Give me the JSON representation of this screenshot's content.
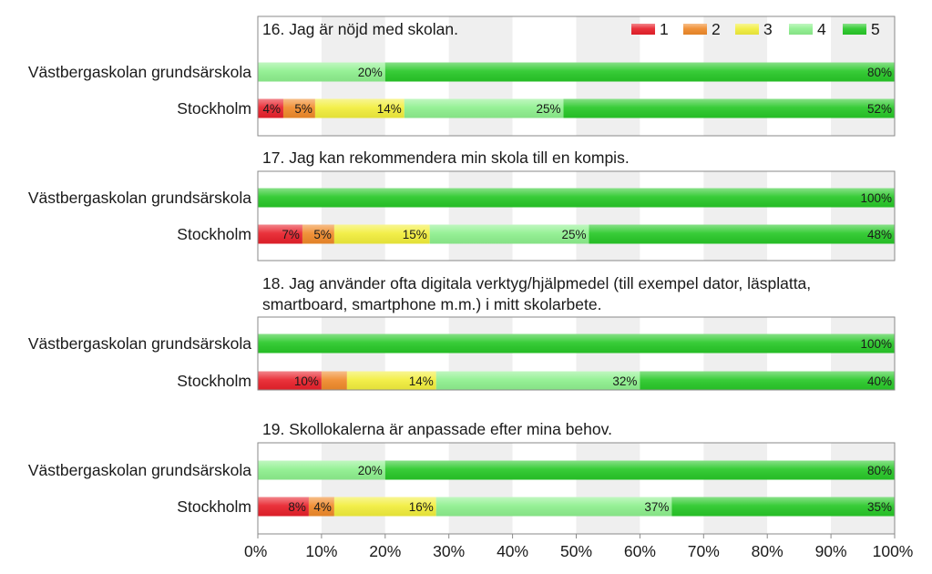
{
  "colors": {
    "1": "#e8212b",
    "2": "#f08a2a",
    "3": "#f2ee3c",
    "4": "#8ef08e",
    "5": "#28c828",
    "band_light": "#ffffff",
    "band_dark": "#efefef",
    "frame": "#8a8a8a"
  },
  "legend": [
    "1",
    "2",
    "3",
    "4",
    "5"
  ],
  "x_ticks": [
    "0%",
    "10%",
    "20%",
    "30%",
    "40%",
    "50%",
    "60%",
    "70%",
    "80%",
    "90%",
    "100%"
  ],
  "chart_data": [
    {
      "type": "bar",
      "orientation": "horizontal-stacked",
      "title": "16. Jag är nöjd med skolan.",
      "categories": [
        "Västbergaskolan grundsärskola",
        "Stockholm"
      ],
      "series": [
        {
          "name": "1",
          "values": [
            0,
            4
          ]
        },
        {
          "name": "2",
          "values": [
            0,
            5
          ]
        },
        {
          "name": "3",
          "values": [
            0,
            14
          ]
        },
        {
          "name": "4",
          "values": [
            20,
            25
          ]
        },
        {
          "name": "5",
          "values": [
            80,
            52
          ]
        }
      ],
      "labels": [
        [
          "",
          "",
          "",
          "20%",
          "80%"
        ],
        [
          "4%",
          "5%",
          "14%",
          "25%",
          "52%"
        ]
      ],
      "xlim": [
        0,
        100
      ]
    },
    {
      "type": "bar",
      "orientation": "horizontal-stacked",
      "title": "17. Jag kan rekommendera min skola till en kompis.",
      "categories": [
        "Västbergaskolan grundsärskola",
        "Stockholm"
      ],
      "series": [
        {
          "name": "1",
          "values": [
            0,
            7
          ]
        },
        {
          "name": "2",
          "values": [
            0,
            5
          ]
        },
        {
          "name": "3",
          "values": [
            0,
            15
          ]
        },
        {
          "name": "4",
          "values": [
            0,
            25
          ]
        },
        {
          "name": "5",
          "values": [
            100,
            48
          ]
        }
      ],
      "labels": [
        [
          "",
          "",
          "",
          "",
          "100%"
        ],
        [
          "7%",
          "5%",
          "15%",
          "25%",
          "48%"
        ]
      ],
      "xlim": [
        0,
        100
      ]
    },
    {
      "type": "bar",
      "orientation": "horizontal-stacked",
      "title": [
        "18. Jag använder ofta digitala verktyg/hjälpmedel (till exempel dator, läsplatta,",
        "smartboard, smartphone m.m.) i mitt skolarbete."
      ],
      "categories": [
        "Västbergaskolan grundsärskola",
        "Stockholm"
      ],
      "series": [
        {
          "name": "1",
          "values": [
            0,
            10
          ]
        },
        {
          "name": "2",
          "values": [
            0,
            4
          ]
        },
        {
          "name": "3",
          "values": [
            0,
            14
          ]
        },
        {
          "name": "4",
          "values": [
            0,
            32
          ]
        },
        {
          "name": "5",
          "values": [
            100,
            40
          ]
        }
      ],
      "labels": [
        [
          "",
          "",
          "",
          "",
          "100%"
        ],
        [
          "10%",
          "",
          "14%",
          "32%",
          "40%"
        ]
      ],
      "xlim": [
        0,
        100
      ]
    },
    {
      "type": "bar",
      "orientation": "horizontal-stacked",
      "title": "19. Skollokalerna är anpassade efter mina behov.",
      "categories": [
        "Västbergaskolan grundsärskola",
        "Stockholm"
      ],
      "series": [
        {
          "name": "1",
          "values": [
            0,
            8
          ]
        },
        {
          "name": "2",
          "values": [
            0,
            4
          ]
        },
        {
          "name": "3",
          "values": [
            0,
            16
          ]
        },
        {
          "name": "4",
          "values": [
            20,
            37
          ]
        },
        {
          "name": "5",
          "values": [
            80,
            35
          ]
        }
      ],
      "labels": [
        [
          "",
          "",
          "",
          "20%",
          "80%"
        ],
        [
          "8%",
          "4%",
          "16%",
          "37%",
          "35%"
        ]
      ],
      "xlim": [
        0,
        100
      ]
    }
  ]
}
